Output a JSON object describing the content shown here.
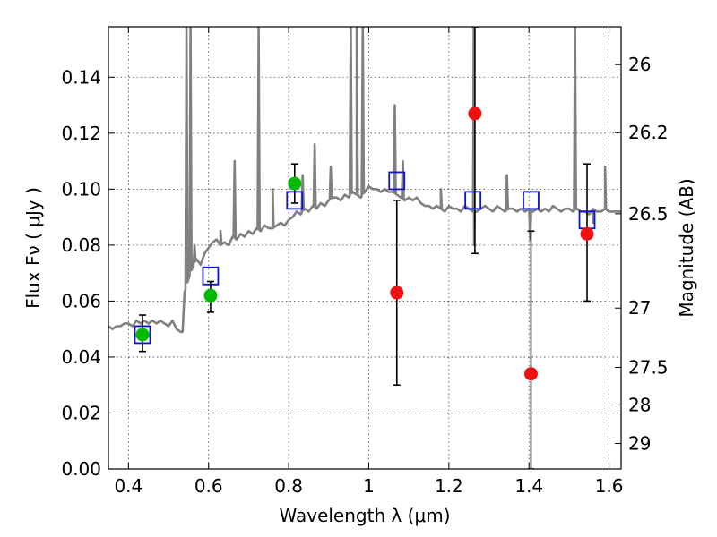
{
  "chart_data": {
    "type": "scatter",
    "xlabel": "Wavelength  λ (μm)",
    "ylabel": "Flux  Fν  ( μJy )",
    "y2label": "Magnitude (AB)",
    "xlim": [
      0.35,
      1.63
    ],
    "ylim": [
      0.0,
      0.158
    ],
    "grid": true,
    "x_ticks": [
      0.4,
      0.6,
      0.8,
      1.0,
      1.2,
      1.4,
      1.6
    ],
    "x_tick_labels": [
      "0.4",
      "0.6",
      "0.8",
      "1",
      "1.2",
      "1.4",
      "1.6"
    ],
    "y_ticks": [
      0.0,
      0.02,
      0.04,
      0.06,
      0.08,
      0.1,
      0.12,
      0.14
    ],
    "y_tick_labels": [
      "0.00",
      "0.02",
      "0.04",
      "0.06",
      "0.08",
      "0.10",
      "0.12",
      "0.14"
    ],
    "mag_ticks": [
      {
        "label": "26",
        "flux": 0.1445
      },
      {
        "label": "26.2",
        "flux": 0.1202
      },
      {
        "label": "26.5",
        "flux": 0.0912
      },
      {
        "label": "27",
        "flux": 0.0575
      },
      {
        "label": "27.5",
        "flux": 0.0363
      },
      {
        "label": "28",
        "flux": 0.0229
      },
      {
        "label": "29",
        "flux": 0.0091
      }
    ],
    "colors": {
      "spectrum": "#808080",
      "green_points": "#00bb00",
      "red_points": "#ee1111",
      "model_boxes": "#1111cc",
      "error_bars": "#000000"
    },
    "series": [
      {
        "marker": "line",
        "x": [
          0.35,
          0.36,
          0.37,
          0.38,
          0.39,
          0.4,
          0.41,
          0.42,
          0.43,
          0.44,
          0.45,
          0.46,
          0.47,
          0.48,
          0.49,
          0.5,
          0.51,
          0.52,
          0.53,
          0.535,
          0.54,
          0.55,
          0.56,
          0.57,
          0.58,
          0.59,
          0.6,
          0.61,
          0.62,
          0.63,
          0.64,
          0.65,
          0.66,
          0.67,
          0.68,
          0.69,
          0.7,
          0.71,
          0.72,
          0.73,
          0.74,
          0.75,
          0.76,
          0.77,
          0.78,
          0.79,
          0.8,
          0.81,
          0.82,
          0.83,
          0.84,
          0.85,
          0.86,
          0.87,
          0.88,
          0.89,
          0.9,
          0.91,
          0.92,
          0.93,
          0.94,
          0.95,
          0.96,
          0.97,
          0.98,
          0.99,
          1.0,
          1.01,
          1.02,
          1.03,
          1.04,
          1.05,
          1.06,
          1.07,
          1.08,
          1.09,
          1.1,
          1.11,
          1.12,
          1.13,
          1.14,
          1.15,
          1.16,
          1.17,
          1.18,
          1.19,
          1.2,
          1.21,
          1.22,
          1.23,
          1.24,
          1.25,
          1.26,
          1.27,
          1.28,
          1.29,
          1.3,
          1.31,
          1.32,
          1.33,
          1.34,
          1.35,
          1.36,
          1.37,
          1.38,
          1.39,
          1.4,
          1.41,
          1.42,
          1.43,
          1.44,
          1.45,
          1.46,
          1.47,
          1.48,
          1.49,
          1.5,
          1.51,
          1.52,
          1.53,
          1.54,
          1.55,
          1.56,
          1.57,
          1.58,
          1.59,
          1.6,
          1.61,
          1.62,
          1.63
        ],
        "y": [
          0.051,
          0.05,
          0.051,
          0.051,
          0.052,
          0.052,
          0.051,
          0.053,
          0.052,
          0.053,
          0.052,
          0.053,
          0.052,
          0.053,
          0.052,
          0.051,
          0.053,
          0.05,
          0.049,
          0.049,
          0.063,
          0.068,
          0.072,
          0.075,
          0.073,
          0.077,
          0.079,
          0.081,
          0.082,
          0.08,
          0.081,
          0.08,
          0.083,
          0.082,
          0.084,
          0.083,
          0.085,
          0.084,
          0.086,
          0.085,
          0.087,
          0.086,
          0.086,
          0.087,
          0.088,
          0.087,
          0.089,
          0.09,
          0.092,
          0.091,
          0.093,
          0.092,
          0.094,
          0.093,
          0.095,
          0.094,
          0.096,
          0.097,
          0.097,
          0.096,
          0.098,
          0.097,
          0.099,
          0.098,
          0.097,
          0.099,
          0.101,
          0.1,
          0.1,
          0.099,
          0.1,
          0.099,
          0.099,
          0.098,
          0.097,
          0.096,
          0.097,
          0.096,
          0.097,
          0.095,
          0.094,
          0.094,
          0.093,
          0.094,
          0.093,
          0.092,
          0.094,
          0.093,
          0.093,
          0.092,
          0.094,
          0.093,
          0.092,
          0.092,
          0.093,
          0.094,
          0.093,
          0.092,
          0.094,
          0.093,
          0.092,
          0.093,
          0.093,
          0.092,
          0.093,
          0.092,
          0.093,
          0.092,
          0.093,
          0.092,
          0.093,
          0.092,
          0.094,
          0.093,
          0.092,
          0.093,
          0.093,
          0.092,
          0.093,
          0.092,
          0.092,
          0.091,
          0.093,
          0.092,
          0.092,
          0.093,
          0.092,
          0.092,
          0.092,
          0.092
        ],
        "spikes": [
          {
            "x": 0.545,
            "y": 0.158
          },
          {
            "x": 0.555,
            "y": 0.158
          },
          {
            "x": 0.565,
            "y": 0.08
          },
          {
            "x": 0.63,
            "y": 0.085
          },
          {
            "x": 0.665,
            "y": 0.11
          },
          {
            "x": 0.725,
            "y": 0.158
          },
          {
            "x": 0.76,
            "y": 0.1
          },
          {
            "x": 0.835,
            "y": 0.105
          },
          {
            "x": 0.865,
            "y": 0.116
          },
          {
            "x": 0.905,
            "y": 0.108
          },
          {
            "x": 0.955,
            "y": 0.158
          },
          {
            "x": 0.97,
            "y": 0.158
          },
          {
            "x": 0.985,
            "y": 0.158
          },
          {
            "x": 1.065,
            "y": 0.13
          },
          {
            "x": 1.085,
            "y": 0.11
          },
          {
            "x": 1.18,
            "y": 0.1
          },
          {
            "x": 1.262,
            "y": 0.158
          },
          {
            "x": 1.345,
            "y": 0.105
          },
          {
            "x": 1.515,
            "y": 0.158
          },
          {
            "x": 1.59,
            "y": 0.108
          }
        ],
        "dips": [
          {
            "x": 1.263,
            "y": 0.08
          },
          {
            "x": 1.403,
            "y": 0.082
          },
          {
            "x": 1.56,
            "y": 0.088
          }
        ]
      },
      {
        "marker": "square",
        "x": [
          0.435,
          0.605,
          0.815,
          1.07,
          1.26,
          1.405,
          1.545
        ],
        "y": [
          0.048,
          0.069,
          0.096,
          0.103,
          0.096,
          0.096,
          0.089
        ]
      },
      {
        "marker": "circle-green",
        "x": [
          0.435,
          0.605,
          0.815
        ],
        "y": [
          0.048,
          0.062,
          0.102
        ],
        "yerr_low": [
          0.042,
          0.056,
          0.095
        ],
        "yerr_high": [
          0.055,
          0.067,
          0.109
        ]
      },
      {
        "marker": "circle-red",
        "x": [
          1.07,
          1.265,
          1.405,
          1.545
        ],
        "y": [
          0.063,
          0.127,
          0.034,
          0.084
        ],
        "yerr_low": [
          0.03,
          0.077,
          0.0,
          0.06
        ],
        "yerr_high": [
          0.096,
          0.158,
          0.085,
          0.109
        ]
      }
    ]
  }
}
